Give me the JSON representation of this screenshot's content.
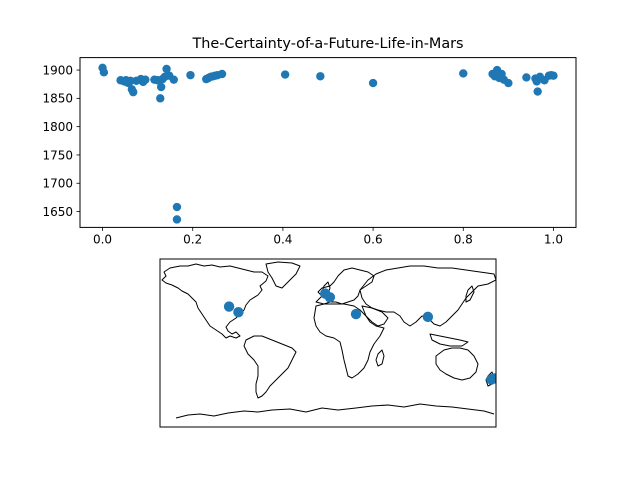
{
  "chart_data": [
    {
      "type": "scatter",
      "title": "The-Certainty-of-a-Future-Life-in-Mars",
      "xlabel": "",
      "ylabel": "",
      "xlim": [
        -0.05,
        1.05
      ],
      "ylim": [
        1622,
        1922
      ],
      "xticks": [
        0.0,
        0.2,
        0.4,
        0.6,
        0.8,
        1.0
      ],
      "xtick_labels": [
        "0.0",
        "0.2",
        "0.4",
        "0.6",
        "0.8",
        "1.0"
      ],
      "yticks": [
        1650,
        1700,
        1750,
        1800,
        1850,
        1900
      ],
      "ytick_labels": [
        "1650",
        "1700",
        "1750",
        "1800",
        "1850",
        "1900"
      ],
      "grid": false,
      "marker_color": "#1f77b4",
      "points": [
        {
          "x": 0.0,
          "y": 1904
        },
        {
          "x": 0.003,
          "y": 1896
        },
        {
          "x": 0.04,
          "y": 1882
        },
        {
          "x": 0.048,
          "y": 1880
        },
        {
          "x": 0.052,
          "y": 1882
        },
        {
          "x": 0.055,
          "y": 1878
        },
        {
          "x": 0.058,
          "y": 1877
        },
        {
          "x": 0.062,
          "y": 1881
        },
        {
          "x": 0.065,
          "y": 1866
        },
        {
          "x": 0.068,
          "y": 1861
        },
        {
          "x": 0.075,
          "y": 1881
        },
        {
          "x": 0.085,
          "y": 1884
        },
        {
          "x": 0.09,
          "y": 1879
        },
        {
          "x": 0.095,
          "y": 1883
        },
        {
          "x": 0.115,
          "y": 1883
        },
        {
          "x": 0.122,
          "y": 1882
        },
        {
          "x": 0.128,
          "y": 1850
        },
        {
          "x": 0.13,
          "y": 1870
        },
        {
          "x": 0.133,
          "y": 1884
        },
        {
          "x": 0.138,
          "y": 1888
        },
        {
          "x": 0.142,
          "y": 1902
        },
        {
          "x": 0.148,
          "y": 1890
        },
        {
          "x": 0.158,
          "y": 1883
        },
        {
          "x": 0.165,
          "y": 1658
        },
        {
          "x": 0.165,
          "y": 1636
        },
        {
          "x": 0.195,
          "y": 1891
        },
        {
          "x": 0.23,
          "y": 1884
        },
        {
          "x": 0.235,
          "y": 1886
        },
        {
          "x": 0.24,
          "y": 1888
        },
        {
          "x": 0.245,
          "y": 1889
        },
        {
          "x": 0.25,
          "y": 1890
        },
        {
          "x": 0.255,
          "y": 1891
        },
        {
          "x": 0.265,
          "y": 1893
        },
        {
          "x": 0.405,
          "y": 1892
        },
        {
          "x": 0.483,
          "y": 1889
        },
        {
          "x": 0.6,
          "y": 1877
        },
        {
          "x": 0.8,
          "y": 1894
        },
        {
          "x": 0.865,
          "y": 1893
        },
        {
          "x": 0.87,
          "y": 1889
        },
        {
          "x": 0.875,
          "y": 1900
        },
        {
          "x": 0.88,
          "y": 1886
        },
        {
          "x": 0.885,
          "y": 1893
        },
        {
          "x": 0.89,
          "y": 1883
        },
        {
          "x": 0.9,
          "y": 1877
        },
        {
          "x": 0.94,
          "y": 1887
        },
        {
          "x": 0.96,
          "y": 1885
        },
        {
          "x": 0.963,
          "y": 1880
        },
        {
          "x": 0.965,
          "y": 1862
        },
        {
          "x": 0.97,
          "y": 1888
        },
        {
          "x": 0.98,
          "y": 1882
        },
        {
          "x": 0.99,
          "y": 1890
        },
        {
          "x": 0.995,
          "y": 1891
        },
        {
          "x": 1.0,
          "y": 1890
        }
      ]
    },
    {
      "type": "scatter",
      "subtype": "world-map",
      "projection": "plate-carree",
      "xlim": [
        -180,
        180
      ],
      "ylim": [
        -90,
        90
      ],
      "marker_color": "#1f77b4",
      "points": [
        {
          "lon": -106,
          "lat": 39
        },
        {
          "lon": -96,
          "lat": 33
        },
        {
          "lon": -3,
          "lat": 53
        },
        {
          "lon": 2,
          "lat": 49
        },
        {
          "lon": 30,
          "lat": 31
        },
        {
          "lon": 107,
          "lat": 28
        },
        {
          "lon": 175,
          "lat": -39
        },
        {
          "lon": 178,
          "lat": -38
        }
      ]
    }
  ]
}
